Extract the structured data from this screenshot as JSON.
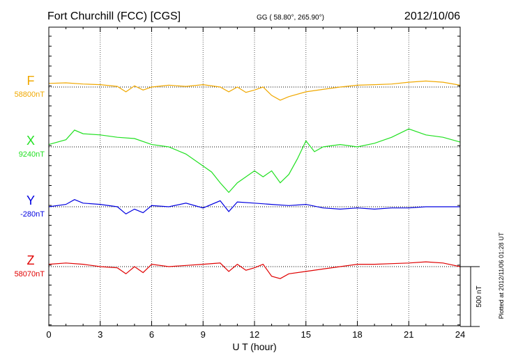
{
  "header": {
    "station": "Fort Churchill (FCC)  [CGS]",
    "coords": "GG ( 58.80°, 265.90°)",
    "date": "2012/10/06"
  },
  "side_note": "Plotted at 2012/11/06 01:28 UT",
  "chart_data": {
    "type": "line",
    "xlabel": "U T (hour)",
    "xlim": [
      0,
      24
    ],
    "xticks": [
      "0",
      "3",
      "6",
      "9",
      "12",
      "15",
      "18",
      "21",
      "24"
    ],
    "scale_bar": {
      "label": "500 nT",
      "value": 500
    },
    "grid": true,
    "series": [
      {
        "name": "F",
        "baseline_label": "58800nT",
        "color": "#f0a800",
        "x": [
          0,
          1,
          2,
          3,
          4,
          4.5,
          5,
          5.5,
          6,
          7,
          8,
          9,
          10,
          10.5,
          11,
          11.5,
          12,
          12.5,
          13,
          13.5,
          14,
          15,
          16,
          17,
          18,
          19,
          20,
          21,
          22,
          23,
          24
        ],
        "y": [
          30,
          35,
          25,
          20,
          5,
          -40,
          10,
          -25,
          0,
          15,
          5,
          20,
          0,
          -40,
          0,
          -45,
          -25,
          0,
          -70,
          -110,
          -80,
          -40,
          -20,
          0,
          15,
          20,
          25,
          40,
          50,
          40,
          15
        ]
      },
      {
        "name": "X",
        "baseline_label": "9240nT",
        "color": "#20e020",
        "x": [
          0,
          1,
          1.5,
          2,
          3,
          4,
          5,
          6,
          7,
          8,
          9,
          9.5,
          10,
          10.5,
          11,
          12,
          12.5,
          13,
          13.5,
          14,
          14.5,
          15,
          15.5,
          16,
          17,
          18,
          19,
          20,
          21,
          22,
          23,
          24
        ],
        "y": [
          20,
          60,
          140,
          110,
          100,
          80,
          70,
          20,
          0,
          -60,
          -160,
          -210,
          -300,
          -380,
          -300,
          -200,
          -250,
          -200,
          -300,
          -230,
          -100,
          50,
          -40,
          0,
          20,
          0,
          30,
          80,
          150,
          100,
          80,
          40
        ]
      },
      {
        "name": "Y",
        "baseline_label": "-280nT",
        "color": "#0000e0",
        "x": [
          0,
          1,
          1.5,
          2,
          3,
          4,
          4.5,
          5,
          5.5,
          6,
          7,
          8,
          9,
          10,
          10.5,
          11,
          12,
          13,
          14,
          15,
          16,
          17,
          18,
          19,
          20,
          21,
          22,
          23,
          24
        ],
        "y": [
          0,
          20,
          60,
          30,
          20,
          0,
          -60,
          -20,
          -50,
          10,
          0,
          30,
          -10,
          50,
          -40,
          40,
          30,
          20,
          10,
          20,
          -10,
          -20,
          -10,
          -20,
          -10,
          -10,
          0,
          0,
          0
        ]
      },
      {
        "name": "Z",
        "baseline_label": "58070nT",
        "color": "#e00000",
        "x": [
          0,
          1,
          2,
          3,
          4,
          4.5,
          5,
          5.5,
          6,
          7,
          8,
          9,
          10,
          10.5,
          11,
          11.5,
          12,
          12.5,
          13,
          13.5,
          14,
          15,
          16,
          17,
          18,
          19,
          20,
          21,
          22,
          23,
          24
        ],
        "y": [
          20,
          30,
          20,
          0,
          -10,
          -60,
          0,
          -50,
          20,
          0,
          10,
          20,
          30,
          -40,
          20,
          -30,
          -10,
          20,
          -80,
          -100,
          -60,
          -40,
          -20,
          0,
          20,
          20,
          25,
          30,
          40,
          30,
          0
        ]
      }
    ]
  }
}
